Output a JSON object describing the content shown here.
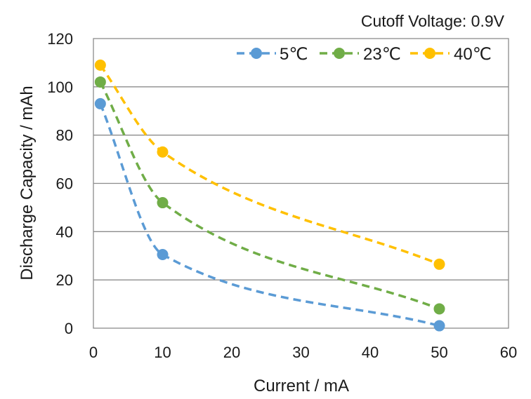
{
  "chart_data": {
    "type": "scatter",
    "title": "",
    "annotation": "Cutoff Voltage: 0.9V",
    "xlabel": "Current / mA",
    "ylabel": "Discharge Capacity / mAh",
    "xlim": [
      0,
      60
    ],
    "ylim": [
      0,
      120
    ],
    "x_ticks": [
      "0",
      "10",
      "20",
      "30",
      "40",
      "50",
      "60"
    ],
    "y_ticks": [
      "0",
      "20",
      "40",
      "60",
      "80",
      "100",
      "120"
    ],
    "grid": "horizontal major gridlines",
    "legend_position": "top-right",
    "x": [
      1,
      10,
      50
    ],
    "series": [
      {
        "name": "5℃",
        "color": "#5b9bd5",
        "values": [
          93,
          30.5,
          1
        ]
      },
      {
        "name": "23℃",
        "color": "#70ad47",
        "values": [
          102,
          52,
          8
        ]
      },
      {
        "name": "40℃",
        "color": "#ffc000",
        "values": [
          109,
          73,
          26.5
        ]
      }
    ]
  }
}
